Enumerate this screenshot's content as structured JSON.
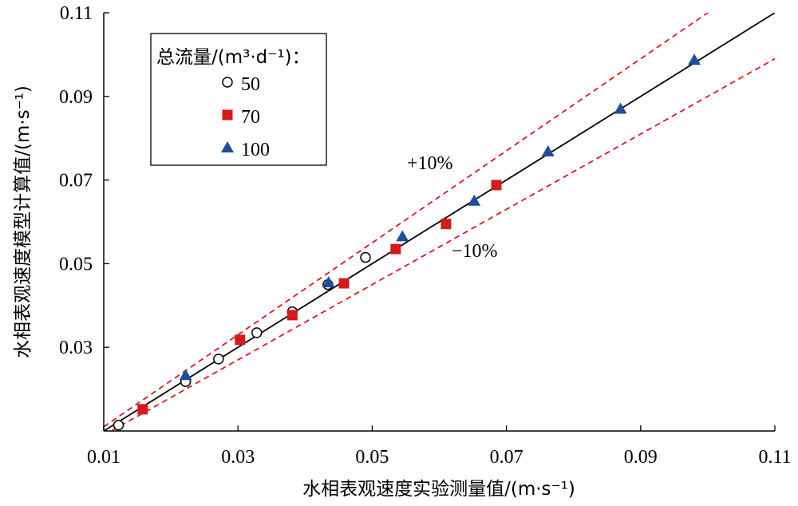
{
  "chart_data": {
    "type": "scatter",
    "xlabel": "水相表观速度实验测量值/(m·s⁻¹)",
    "ylabel": "水相表观速度模型计算值/(m·s⁻¹)",
    "xlim": [
      0.01,
      0.11
    ],
    "ylim": [
      0.01,
      0.11
    ],
    "x_ticks": [
      "0.01",
      "0.03",
      "0.05",
      "0.07",
      "0.09",
      "0.11"
    ],
    "y_ticks": [
      "0.03",
      "0.05",
      "0.07",
      "0.09",
      "0.11"
    ],
    "grid": false,
    "legend": {
      "title": "总流量/(m³·d⁻¹)：",
      "placement": "top-left"
    },
    "series": [
      {
        "name": "50",
        "marker": "open-circle",
        "color": "#000000",
        "points": [
          [
            0.0122,
            0.0114
          ],
          [
            0.0222,
            0.0218
          ],
          [
            0.0271,
            0.0272
          ],
          [
            0.0328,
            0.0335
          ],
          [
            0.0381,
            0.0385
          ],
          [
            0.0434,
            0.045
          ],
          [
            0.049,
            0.0515
          ]
        ]
      },
      {
        "name": "70",
        "marker": "square",
        "color": "#d7191c",
        "points": [
          [
            0.0158,
            0.0152
          ],
          [
            0.0303,
            0.0318
          ],
          [
            0.0381,
            0.0377
          ],
          [
            0.0458,
            0.0453
          ],
          [
            0.0535,
            0.0535
          ],
          [
            0.061,
            0.0595
          ],
          [
            0.0685,
            0.0688
          ]
        ]
      },
      {
        "name": "100",
        "marker": "triangle",
        "color": "#1f4e9c",
        "points": [
          [
            0.0222,
            0.0233
          ],
          [
            0.0435,
            0.0455
          ],
          [
            0.0545,
            0.0565
          ],
          [
            0.0652,
            0.065
          ],
          [
            0.0762,
            0.0768
          ],
          [
            0.087,
            0.087
          ],
          [
            0.098,
            0.0987
          ]
        ]
      }
    ],
    "reference_lines": [
      {
        "label": "",
        "slope": 1.0,
        "style": "solid",
        "color": "#000000"
      },
      {
        "label": "+10%",
        "slope": 1.1,
        "style": "dashed",
        "color": "#d7191c"
      },
      {
        "label": "−10%",
        "slope": 0.9,
        "style": "dashed",
        "color": "#d7191c"
      }
    ]
  }
}
